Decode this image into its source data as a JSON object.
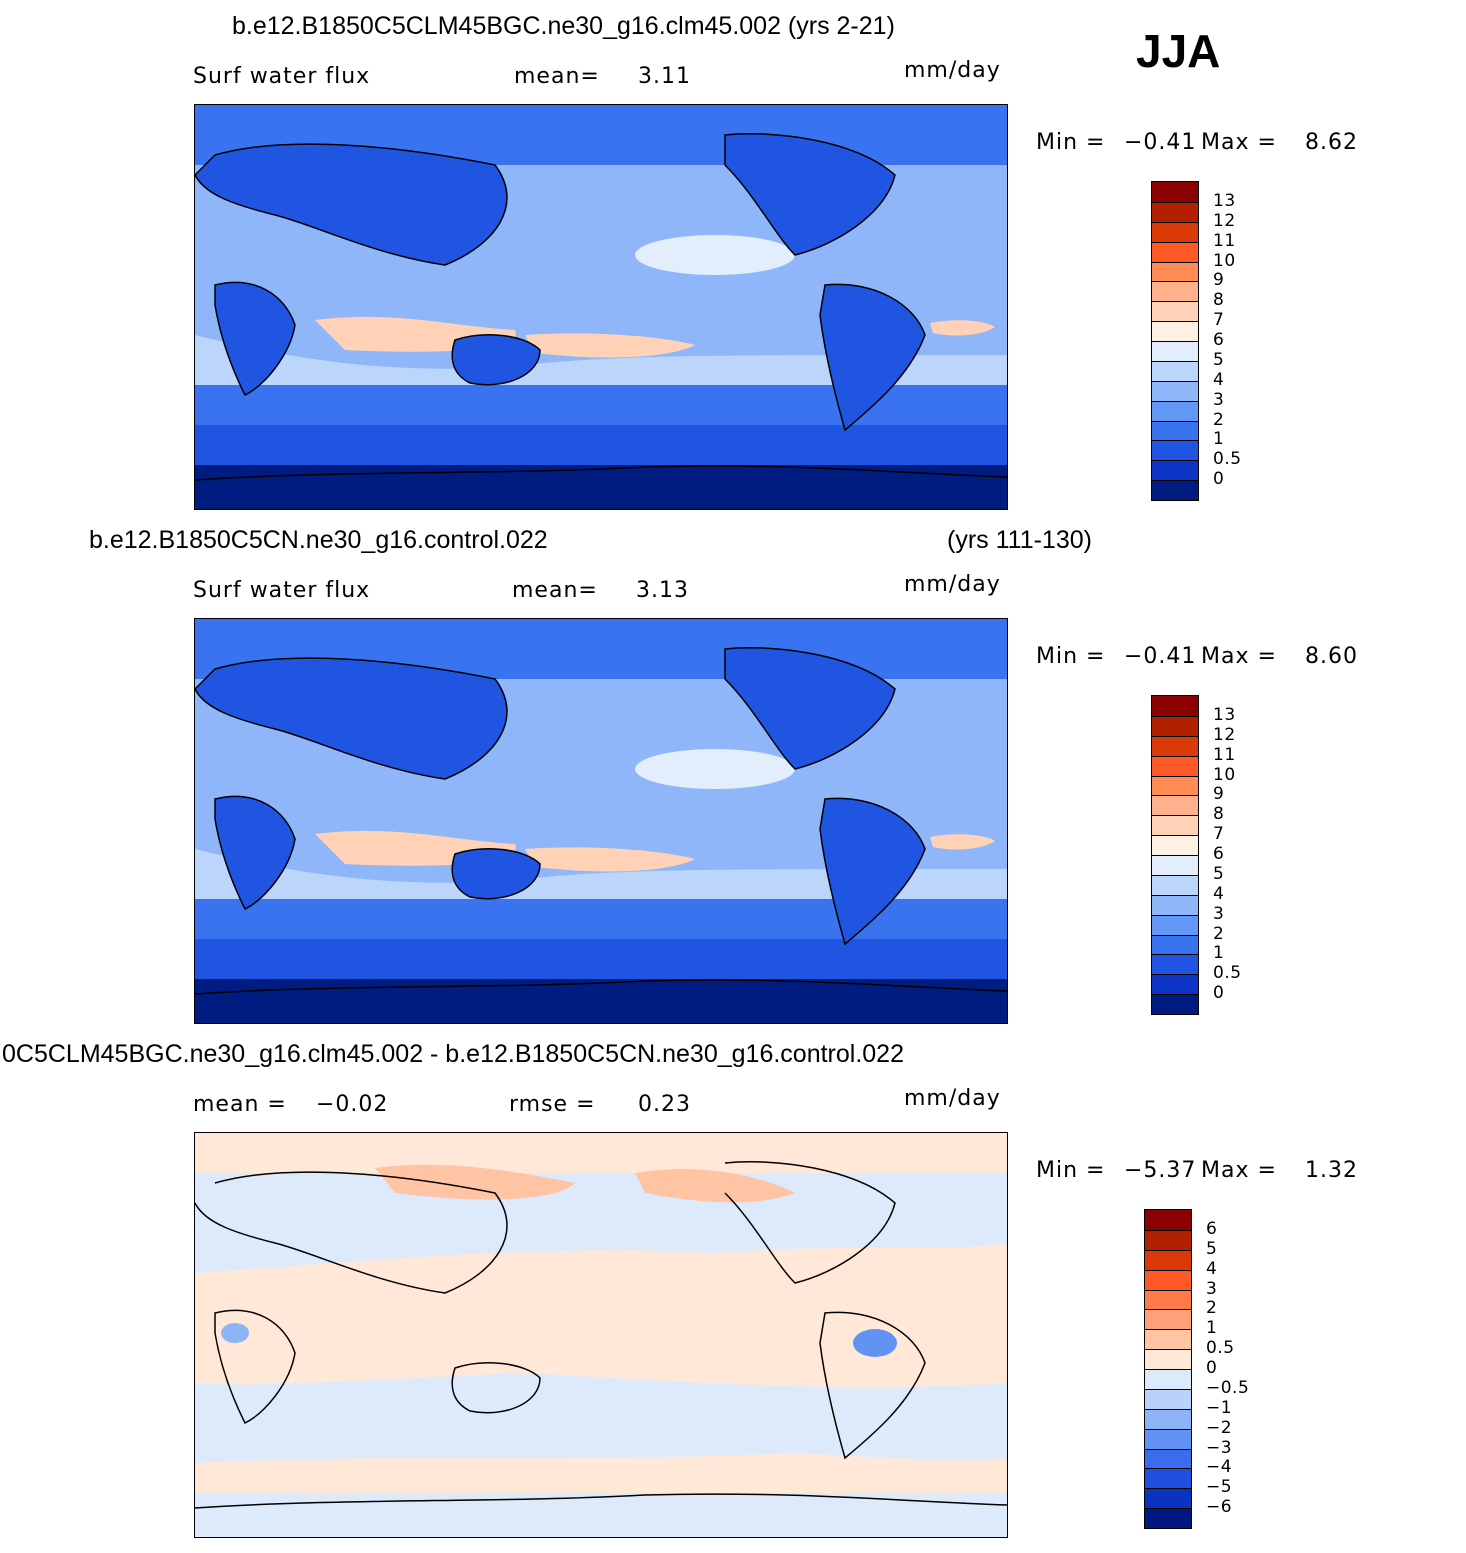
{
  "season": "JJA",
  "units": "mm/day",
  "panels": [
    {
      "id": "top",
      "title": "b.e12.B1850C5CLM45BGC.ne30_g16.clm45.002 (yrs 2-21)",
      "title_right": "",
      "variable": "Surf water flux",
      "stat1_label": "mean=",
      "stat1_value": "3.11",
      "stat2_label": "",
      "stat2_value": "",
      "min_label": "Min =",
      "min_value": "−0.41",
      "max_label": "Max =",
      "max_value": "8.62",
      "colorbar_labels": [
        "13",
        "12",
        "11",
        "10",
        "9",
        "8",
        "7",
        "6",
        "5",
        "4",
        "3",
        "2",
        "1",
        "0.5",
        "0"
      ],
      "colorbar_colors": [
        "#8b0000",
        "#b22000",
        "#db3a08",
        "#ff5a26",
        "#ff8b55",
        "#ffb08c",
        "#ffd2b8",
        "#fff0e4",
        "#e2eefc",
        "#bcd6fb",
        "#8eb6f8",
        "#6197f5",
        "#3a73ef",
        "#1f55e0",
        "#0c35c5",
        "#001c80"
      ]
    },
    {
      "id": "middle",
      "title": "b.e12.B1850C5CN.ne30_g16.control.022",
      "title_right": "(yrs 111-130)",
      "variable": "Surf water flux",
      "stat1_label": "mean=",
      "stat1_value": "3.13",
      "stat2_label": "",
      "stat2_value": "",
      "min_label": "Min =",
      "min_value": "−0.41",
      "max_label": "Max =",
      "max_value": "8.60",
      "colorbar_labels": [
        "13",
        "12",
        "11",
        "10",
        "9",
        "8",
        "7",
        "6",
        "5",
        "4",
        "3",
        "2",
        "1",
        "0.5",
        "0"
      ],
      "colorbar_colors": [
        "#8b0000",
        "#b22000",
        "#db3a08",
        "#ff5a26",
        "#ff8b55",
        "#ffb08c",
        "#ffd2b8",
        "#fff0e4",
        "#e2eefc",
        "#bcd6fb",
        "#8eb6f8",
        "#6197f5",
        "#3a73ef",
        "#1f55e0",
        "#0c35c5",
        "#001c80"
      ]
    },
    {
      "id": "bottom",
      "title": "0C5CLM45BGC.ne30_g16.clm45.002 - b.e12.B1850C5CN.ne30_g16.control.022",
      "title_right": "",
      "variable": "",
      "stat1_label": "mean =",
      "stat1_value": "−0.02",
      "stat2_label": "rmse =",
      "stat2_value": "0.23",
      "min_label": "Min =",
      "min_value": "−5.37",
      "max_label": "Max =",
      "max_value": "1.32",
      "colorbar_labels": [
        "6",
        "5",
        "4",
        "3",
        "2",
        "1",
        "0.5",
        "0",
        "−0.5",
        "−1",
        "−2",
        "−3",
        "−4",
        "−5",
        "−6"
      ],
      "colorbar_colors": [
        "#8b0000",
        "#b22000",
        "#db3a08",
        "#ff5a26",
        "#ff7a48",
        "#ffa078",
        "#ffc4a4",
        "#ffe8d8",
        "#dceafc",
        "#b8d2fb",
        "#8eb4f8",
        "#6292f4",
        "#3a6cee",
        "#1f4ee0",
        "#0c32c0",
        "#001880"
      ]
    }
  ],
  "map_colors": {
    "abs_ocean_deep": "#0c35c5",
    "abs_ocean_mid": "#3a73ef",
    "abs_ocean_light": "#8eb6f8",
    "abs_ocean_pale": "#bcd6fb",
    "abs_ocean_white": "#e2eefc",
    "abs_warm": "#ffd2b8",
    "abs_polar": "#001c80",
    "abs_land": "#1f55e0",
    "diff_neutral_pos": "#ffe8d8",
    "diff_neutral_neg": "#dceafc",
    "diff_pos": "#ffc4a4",
    "diff_neg": "#b8d2fb",
    "diff_neg_strong": "#6292f4"
  }
}
